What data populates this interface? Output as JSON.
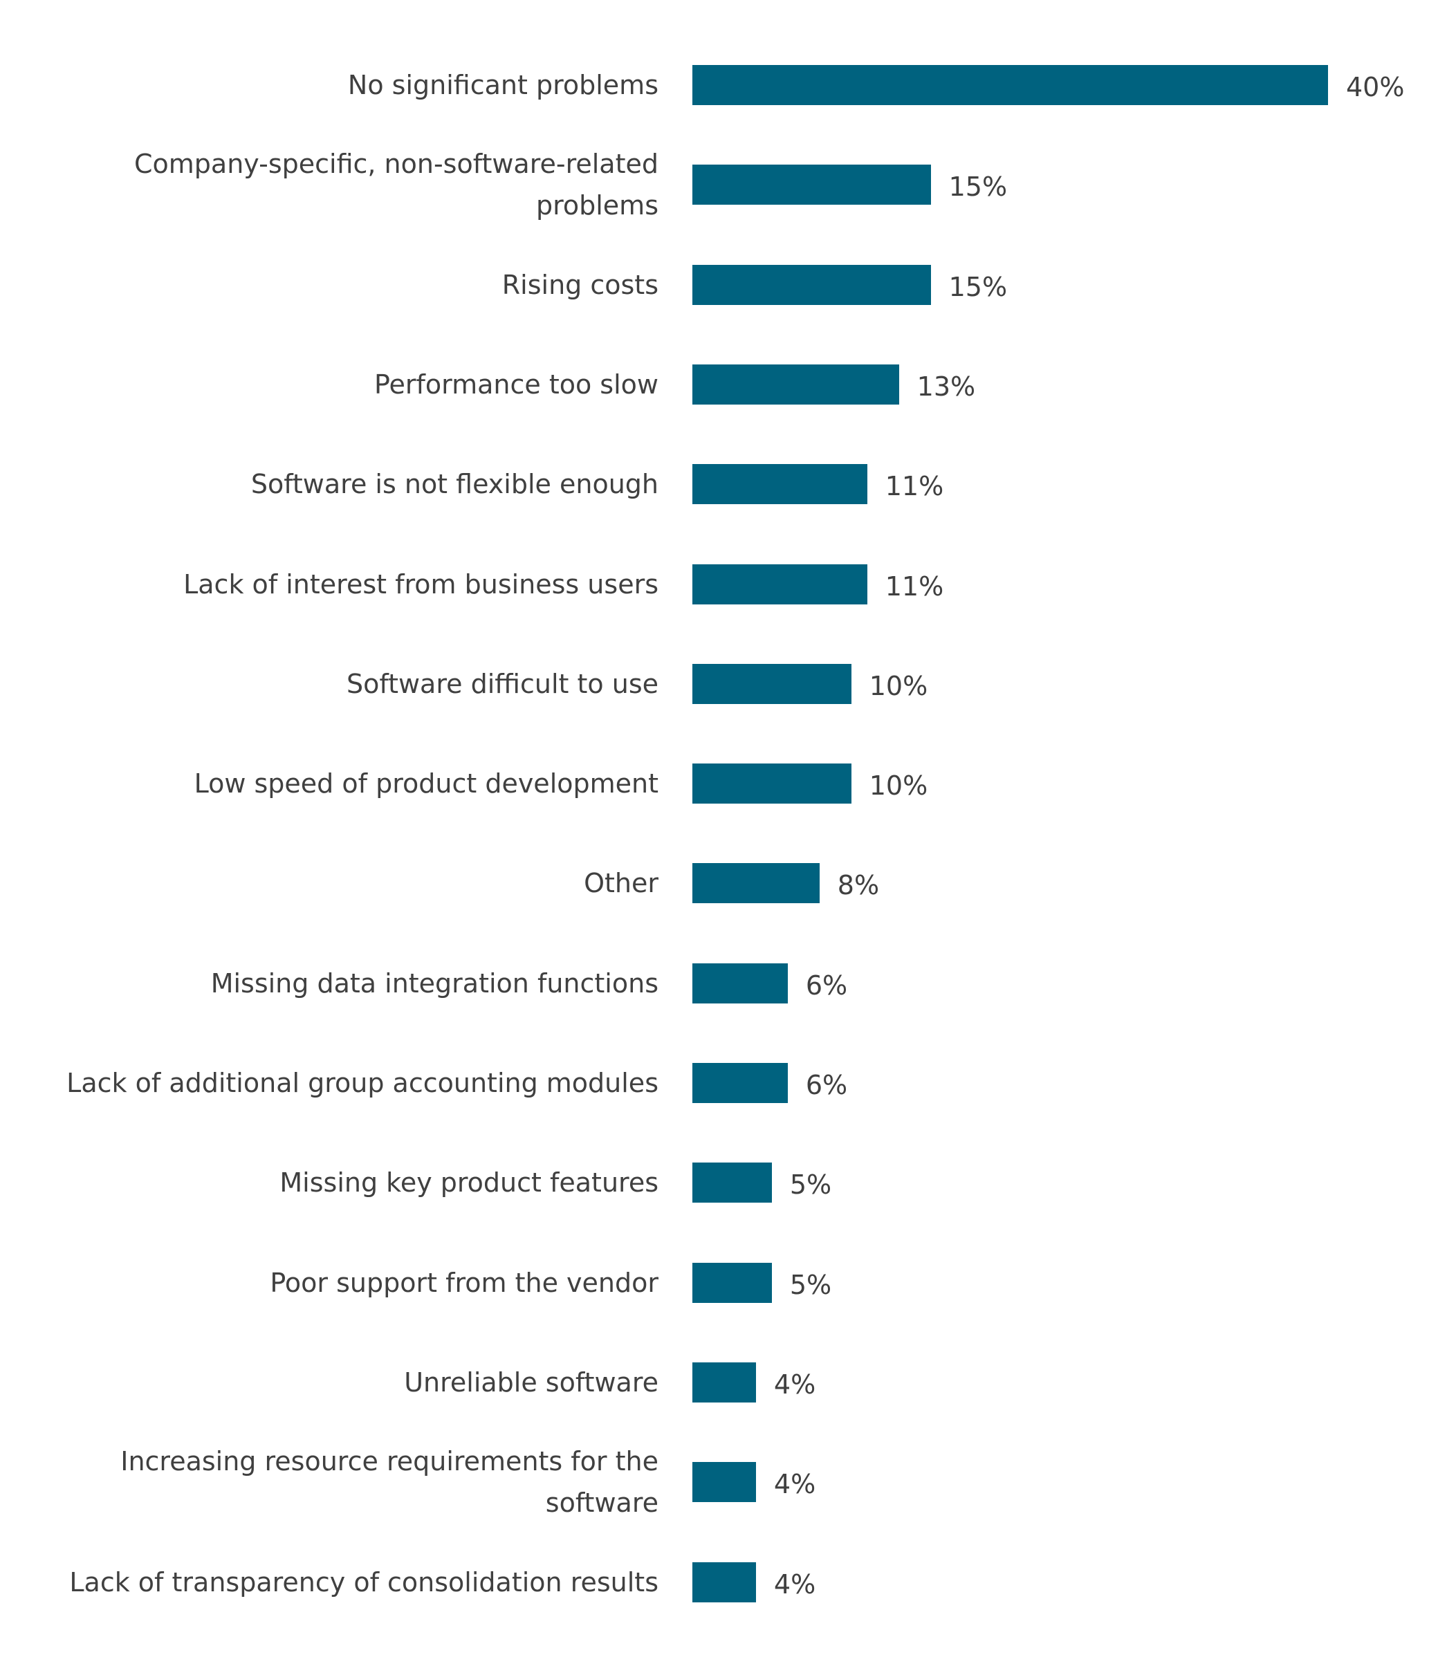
{
  "chart_data": {
    "type": "bar",
    "orientation": "horizontal",
    "categories": [
      "No significant problems",
      "Company-specific, non-software-related\nproblems",
      "Rising costs",
      "Performance too slow",
      "Software is not flexible enough",
      "Lack of interest from business users",
      "Software difficult to use",
      "Low speed of product development",
      "Other",
      "Missing data integration functions",
      "Lack of additional group accounting modules",
      "Missing key product features",
      "Poor support from the vendor",
      "Unreliable software",
      "Increasing resource requirements for the\nsoftware",
      "Lack of transparency of consolidation results"
    ],
    "values": [
      40,
      15,
      15,
      13,
      11,
      11,
      10,
      10,
      8,
      6,
      6,
      5,
      5,
      4,
      4,
      4
    ],
    "data_labels": [
      "40%",
      "15%",
      "15%",
      "13%",
      "11%",
      "11%",
      "10%",
      "10%",
      "8%",
      "6%",
      "6%",
      "5%",
      "5%",
      "4%",
      "4%",
      "4%"
    ],
    "xlim": [
      0,
      40
    ],
    "grid": false,
    "legend": "none",
    "bar_color": "#00627F"
  }
}
